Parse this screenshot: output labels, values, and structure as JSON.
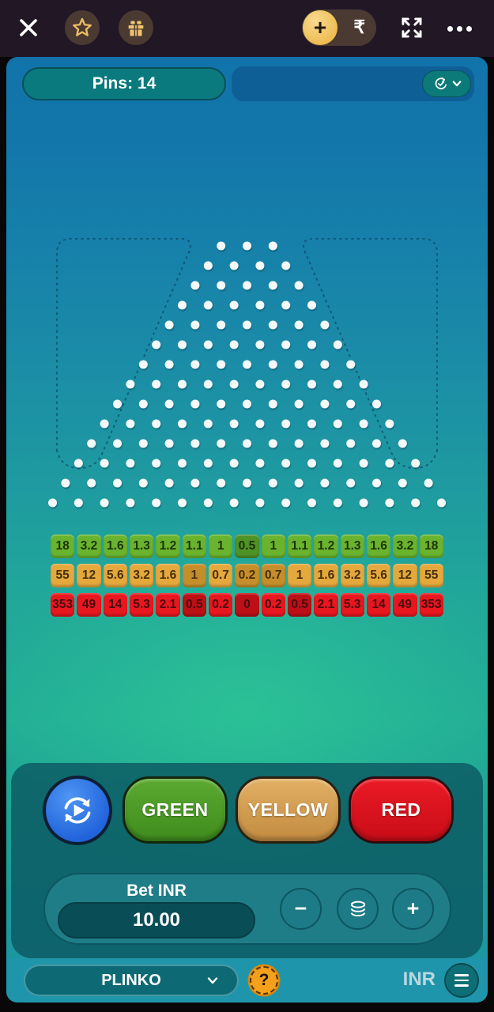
{
  "top_bar": {
    "deposit_plus": "+",
    "currency_symbol": "₹"
  },
  "header": {
    "pins_label": "Pins: 14"
  },
  "board": {
    "pin_rows": 14,
    "pin_color": "#f4f9f9"
  },
  "chart_data": {
    "type": "table",
    "title": "Plinko payout multipliers (14 pins, 15 slots)",
    "series": [
      {
        "name": "GREEN",
        "values": [
          18,
          3.2,
          1.6,
          1.3,
          1.2,
          1.1,
          1,
          0.5,
          1,
          1.1,
          1.2,
          1.3,
          1.6,
          3.2,
          18
        ]
      },
      {
        "name": "YELLOW",
        "values": [
          55,
          12,
          5.6,
          3.2,
          1.6,
          1,
          0.7,
          0.2,
          0.7,
          1,
          1.6,
          3.2,
          5.6,
          12,
          55
        ]
      },
      {
        "name": "RED",
        "values": [
          353,
          49,
          14,
          5.3,
          2.1,
          0.5,
          0.2,
          0,
          0.2,
          0.5,
          2.1,
          5.3,
          14,
          49,
          353
        ]
      }
    ]
  },
  "multipliers": {
    "rows": [
      {
        "name": "green",
        "color": "#6ab32e",
        "dim_color": "#4f9226",
        "text": "#1d3306",
        "values": [
          "18",
          "3.2",
          "1.6",
          "1.3",
          "1.2",
          "1.1",
          "1",
          "0.5",
          "1",
          "1.1",
          "1.2",
          "1.3",
          "1.6",
          "3.2",
          "18"
        ],
        "dim": [
          7
        ]
      },
      {
        "name": "yellow",
        "color": "#e5a83c",
        "dim_color": "#c68e2b",
        "text": "#44300c",
        "values": [
          "55",
          "12",
          "5.6",
          "3.2",
          "1.6",
          "1",
          "0.7",
          "0.2",
          "0.7",
          "1",
          "1.6",
          "3.2",
          "5.6",
          "12",
          "55"
        ],
        "dim": [
          5,
          7,
          8
        ]
      },
      {
        "name": "red",
        "color": "#e8171f",
        "dim_color": "#bc1016",
        "text": "#4a0b0e",
        "values": [
          "353",
          "49",
          "14",
          "5.3",
          "2.1",
          "0.5",
          "0.2",
          "0",
          "0.2",
          "0.5",
          "2.1",
          "5.3",
          "14",
          "49",
          "353"
        ],
        "dim": [
          5,
          7,
          9
        ]
      }
    ]
  },
  "controls": {
    "bet_buttons": [
      {
        "id": "green",
        "label": "GREEN",
        "color_top": "#5ba930",
        "color_bottom": "#3f8c1e",
        "border": "#14250c"
      },
      {
        "id": "yellow",
        "label": "YELLOW",
        "color_top": "#e2af64",
        "color_bottom": "#c28b40",
        "border": "#2a1f10"
      },
      {
        "id": "red",
        "label": "RED",
        "color_top": "#e91a25",
        "color_bottom": "#c90d18",
        "border": "#2a0b0e"
      }
    ]
  },
  "bet": {
    "label": "Bet INR",
    "amount": "10.00",
    "minus_label": "−",
    "plus_label": "+"
  },
  "footer": {
    "game_name": "PLINKO",
    "help_label": "?",
    "currency_label": "INR"
  }
}
